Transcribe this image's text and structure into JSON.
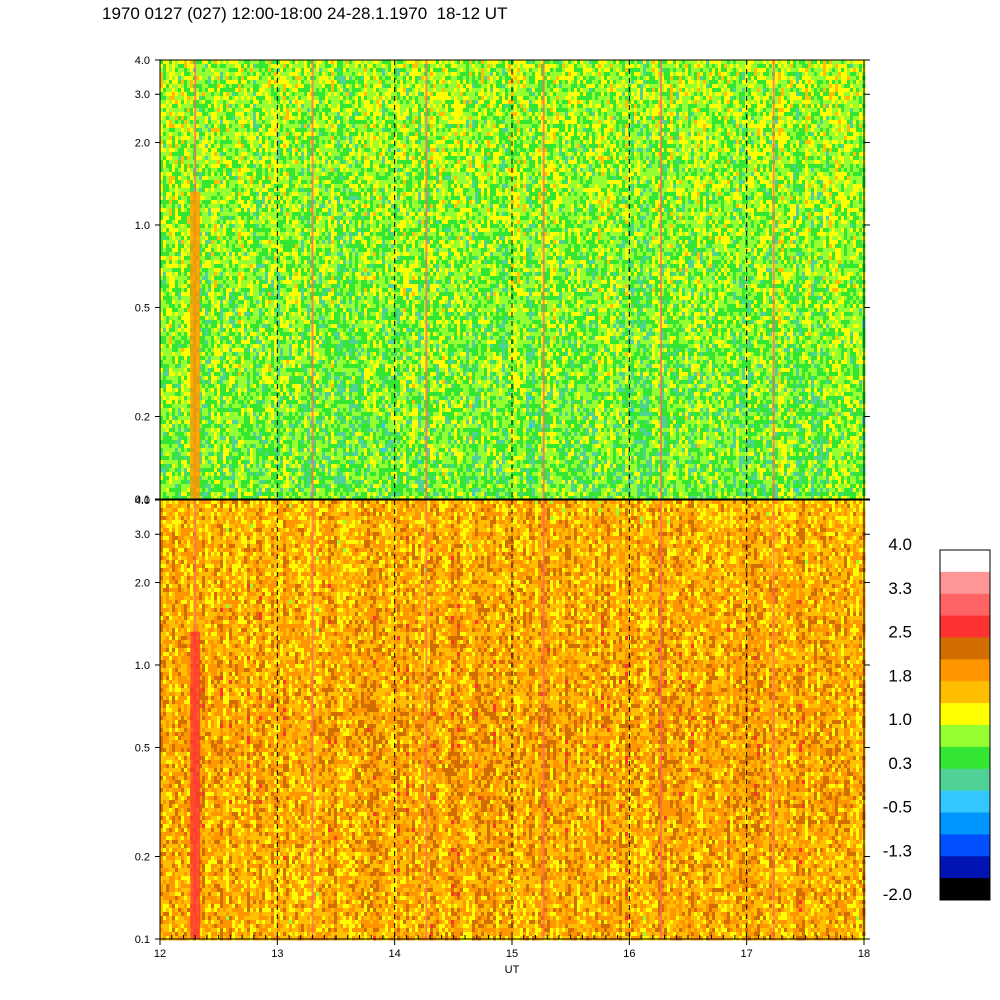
{
  "title": "1970 0127 (027) 12:00-18:00 24-28.1.1970  18-12 UT",
  "chart_data": {
    "type": "heatmap",
    "xlabel": "UT",
    "xlim": [
      12,
      18
    ],
    "x_ticks": [
      "12",
      "13",
      "14",
      "15",
      "16",
      "17",
      "18"
    ],
    "x_dashed_lines": [
      13,
      14,
      15,
      16,
      17
    ],
    "y_scale": "log",
    "ylim": [
      0.1,
      4.0
    ],
    "y_ticks": [
      {
        "value": 4.0,
        "label": "4.0"
      },
      {
        "value": 3.0,
        "label": "3.0"
      },
      {
        "value": 2.0,
        "label": "2.0"
      },
      {
        "value": 1.0,
        "label": "1.0"
      },
      {
        "value": 0.5,
        "label": "0.5"
      },
      {
        "value": 0.2,
        "label": "0.2"
      },
      {
        "value": 0.1,
        "label": "0.1"
      }
    ],
    "panels": [
      {
        "name": "upper",
        "dominant_levels": [
          0.3,
          0.6,
          1.0
        ],
        "mean_level": 0.5,
        "spike_times": [
          12.3,
          13.3,
          14.27,
          15.27,
          16.27,
          17.23
        ]
      },
      {
        "name": "lower",
        "dominant_levels": [
          1.4,
          1.8,
          2.0
        ],
        "mean_level": 1.7,
        "spike_times": [
          12.3,
          13.3,
          14.27,
          15.27,
          16.27,
          17.23
        ]
      }
    ],
    "colorbar": {
      "tick_labels": [
        "4.0",
        "3.3",
        "2.5",
        "1.8",
        "1.0",
        "0.3",
        "-0.5",
        "-1.3",
        "-2.0"
      ],
      "range": [
        -2.0,
        4.0
      ],
      "colors_top_to_bottom": [
        "#ffffff",
        "#ff9696",
        "#ff6464",
        "#ff3232",
        "#d26e00",
        "#ff9600",
        "#ffbe00",
        "#ffff00",
        "#96ff32",
        "#32e632",
        "#50d296",
        "#32c8ff",
        "#0096ff",
        "#0050ff",
        "#0014b4",
        "#000000"
      ]
    }
  }
}
